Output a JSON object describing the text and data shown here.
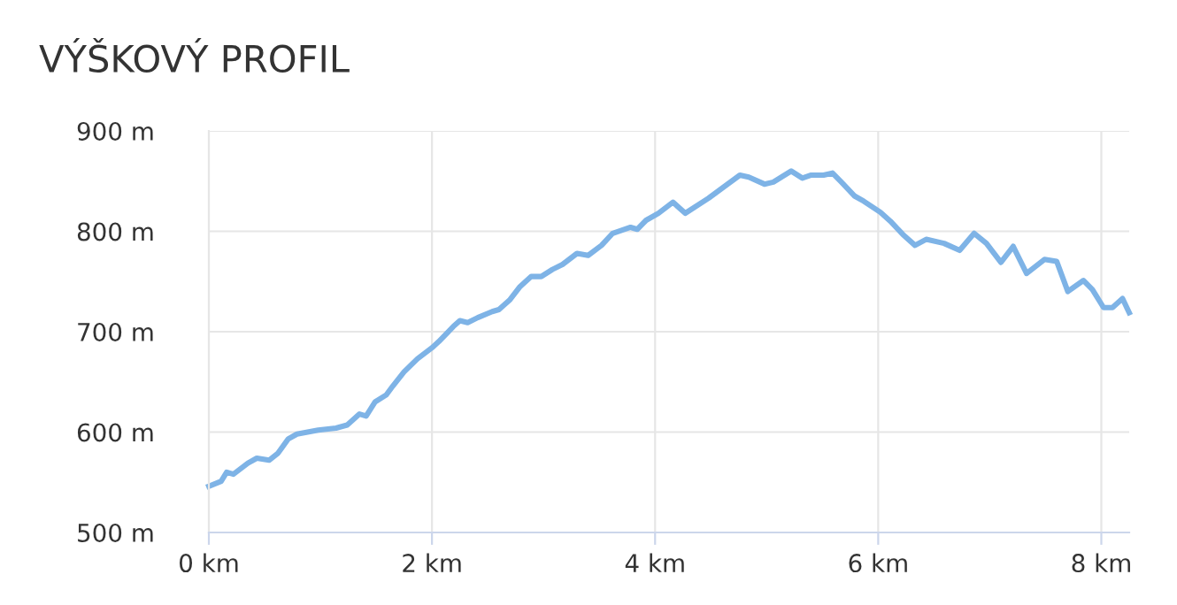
{
  "chart_data": {
    "type": "line",
    "title": "VÝŠKOVÝ PROFIL",
    "x": [
      0,
      0.11,
      0.16,
      0.22,
      0.35,
      0.43,
      0.54,
      0.62,
      0.71,
      0.79,
      0.98,
      1.14,
      1.24,
      1.3,
      1.35,
      1.41,
      1.49,
      1.59,
      1.65,
      1.75,
      1.87,
      2.0,
      2.06,
      2.19,
      2.25,
      2.32,
      2.41,
      2.54,
      2.6,
      2.7,
      2.79,
      2.89,
      2.98,
      3.08,
      3.17,
      3.3,
      3.4,
      3.52,
      3.62,
      3.78,
      3.84,
      3.92,
      4.03,
      4.16,
      4.27,
      4.48,
      4.59,
      4.76,
      4.84,
      4.98,
      5.06,
      5.22,
      5.32,
      5.4,
      5.51,
      5.59,
      5.67,
      5.79,
      5.87,
      6.02,
      6.11,
      6.22,
      6.33,
      6.43,
      6.59,
      6.73,
      6.86,
      6.97,
      7.1,
      7.21,
      7.33,
      7.49,
      7.6,
      7.7,
      7.84,
      7.92,
      8.02,
      8.1,
      8.19,
      8.25
    ],
    "series": [
      {
        "color": "#7eb3e6",
        "values": [
          546,
          551,
          560,
          558,
          569,
          574,
          572,
          579,
          593,
          598,
          602,
          604,
          607,
          613,
          618,
          616,
          630,
          637,
          646,
          660,
          673,
          684,
          690,
          705,
          711,
          709,
          714,
          720,
          722,
          732,
          745,
          755,
          755,
          762,
          767,
          778,
          776,
          786,
          798,
          804,
          802,
          811,
          818,
          829,
          818,
          833,
          842,
          856,
          854,
          847,
          849,
          860,
          853,
          856,
          856,
          858,
          849,
          835,
          830,
          819,
          810,
          797,
          786,
          792,
          788,
          781,
          798,
          788,
          769,
          785,
          758,
          772,
          770,
          740,
          751,
          742,
          724,
          724,
          733,
          719
        ]
      }
    ],
    "xlim": [
      0,
      8.25
    ],
    "xticks": [
      {
        "value": 0,
        "label": "0 km"
      },
      {
        "value": 2,
        "label": "2 km"
      },
      {
        "value": 4,
        "label": "4 km"
      },
      {
        "value": 6,
        "label": "6 km"
      },
      {
        "value": 8,
        "label": "8 km"
      }
    ],
    "ylim": [
      500,
      900
    ],
    "yticks": [
      {
        "value": 500,
        "label": "500 m"
      },
      {
        "value": 600,
        "label": "600 m"
      },
      {
        "value": 700,
        "label": "700 m"
      },
      {
        "value": 800,
        "label": "800 m"
      },
      {
        "value": 900,
        "label": "900 m"
      }
    ],
    "grid": true,
    "marker": "none",
    "line_style": "solid",
    "legend": false
  }
}
